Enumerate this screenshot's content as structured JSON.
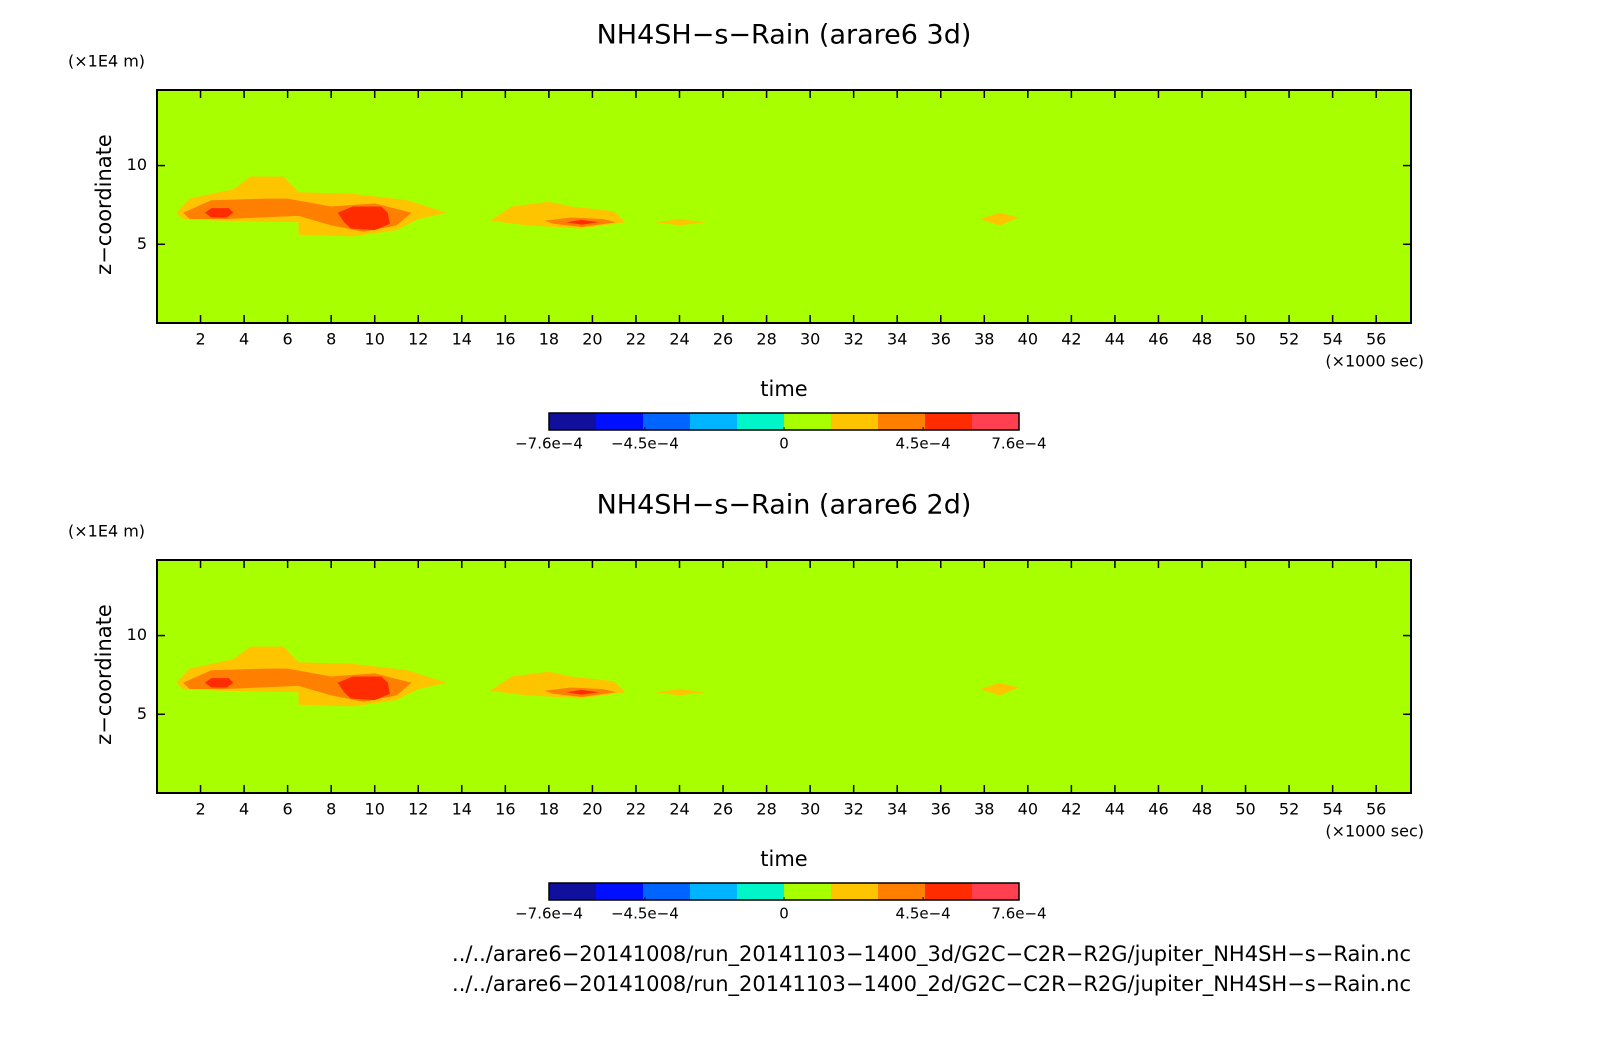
{
  "chart_data": [
    {
      "type": "contour",
      "title": "NH4SH−s−Rain (arare6 3d)",
      "x_label": "time",
      "y_label": "z−coordinate",
      "x_unit": "(×1000 sec)",
      "y_unit": "(×1E4 m)",
      "xlim": [
        0,
        57.6
      ],
      "xticks": [
        2,
        4,
        6,
        8,
        10,
        12,
        14,
        16,
        18,
        20,
        22,
        24,
        26,
        28,
        30,
        32,
        34,
        36,
        38,
        40,
        42,
        44,
        46,
        48,
        50,
        52,
        54,
        56
      ],
      "ylim": [
        0,
        14.8
      ],
      "yticks": [
        5,
        10
      ],
      "colorbar": {
        "lim": [
          -0.00076,
          0.00076
        ],
        "ticks": [
          {
            "value": -0.00076,
            "label": "−7.6e−4"
          },
          {
            "value": -0.00045,
            "label": "−4.5e−4"
          },
          0,
          {
            "value": 0.00045,
            "label": "4.5e−4"
          },
          {
            "value": 0.00076,
            "label": "7.6e−4"
          }
        ],
        "colors": [
          "#10109c",
          "#0010ff",
          "#0064ff",
          "#00b4ff",
          "#00f5c8",
          "#a8ff00",
          "#ffc400",
          "#ff8000",
          "#ff2c00",
          "#ff4050"
        ]
      },
      "background_level": 5,
      "contours": [
        {
          "level": 6,
          "x": [
            0.9,
            1.5,
            3.5,
            4.3,
            5.8,
            6.5,
            9,
            11.5,
            13.3,
            12,
            11,
            9,
            6.5,
            6.5,
            3,
            1.2
          ],
          "y": [
            7.0,
            7.9,
            8.5,
            9.3,
            9.3,
            8.3,
            8.2,
            7.8,
            7.0,
            6.6,
            5.9,
            5.5,
            5.6,
            6.4,
            6.5,
            6.6
          ]
        },
        {
          "level": 7,
          "x": [
            1.2,
            2.5,
            5,
            6,
            8,
            10,
            11.7,
            11,
            9.5,
            8,
            6.5,
            3,
            1.5
          ],
          "y": [
            7.0,
            7.8,
            7.9,
            7.9,
            7.4,
            7.6,
            7.0,
            6.2,
            5.8,
            6.2,
            6.8,
            6.6,
            6.6
          ]
        },
        {
          "level": 8,
          "x": [
            2.2,
            2.5,
            3.3,
            3.5,
            3.2,
            2.5
          ],
          "y": [
            7.0,
            7.3,
            7.3,
            7.0,
            6.7,
            6.7
          ]
        },
        {
          "level": 8,
          "x": [
            8.3,
            9,
            10.3,
            10.6,
            10.7,
            10,
            8.9,
            8.6
          ],
          "y": [
            7.0,
            7.4,
            7.4,
            7.0,
            6.3,
            5.9,
            6.0,
            6.4
          ]
        },
        {
          "level": 6,
          "x": [
            15.3,
            16.3,
            18,
            19,
            21,
            21.5,
            19.5,
            17
          ],
          "y": [
            6.5,
            7.4,
            7.7,
            7.4,
            7.1,
            6.4,
            6.0,
            6.2
          ]
        },
        {
          "level": 7,
          "x": [
            17.8,
            19,
            20.5,
            21.1,
            19.5,
            18.2
          ],
          "y": [
            6.5,
            6.7,
            6.6,
            6.4,
            6.1,
            6.3
          ]
        },
        {
          "level": 8,
          "x": [
            18.8,
            19.5,
            20.3,
            19.5
          ],
          "y": [
            6.4,
            6.55,
            6.4,
            6.25
          ]
        },
        {
          "level": 6,
          "x": [
            22.9,
            24,
            25.2,
            24
          ],
          "y": [
            6.4,
            6.6,
            6.4,
            6.2
          ]
        },
        {
          "level": 6,
          "x": [
            37.8,
            38.7,
            39.6,
            38.7
          ],
          "y": [
            6.6,
            7.0,
            6.7,
            6.2
          ]
        }
      ]
    },
    {
      "type": "contour",
      "title": "NH4SH−s−Rain (arare6 2d)",
      "x_label": "time",
      "y_label": "z−coordinate",
      "x_unit": "(×1000 sec)",
      "y_unit": "(×1E4 m)",
      "xlim": [
        0,
        57.6
      ],
      "xticks": [
        2,
        4,
        6,
        8,
        10,
        12,
        14,
        16,
        18,
        20,
        22,
        24,
        26,
        28,
        30,
        32,
        34,
        36,
        38,
        40,
        42,
        44,
        46,
        48,
        50,
        52,
        54,
        56
      ],
      "ylim": [
        0,
        14.8
      ],
      "yticks": [
        5,
        10
      ],
      "colorbar": {
        "lim": [
          -0.00076,
          0.00076
        ],
        "ticks": [
          {
            "value": -0.00076,
            "label": "−7.6e−4"
          },
          {
            "value": -0.00045,
            "label": "−4.5e−4"
          },
          0,
          {
            "value": 0.00045,
            "label": "4.5e−4"
          },
          {
            "value": 0.00076,
            "label": "7.6e−4"
          }
        ],
        "colors": [
          "#10109c",
          "#0010ff",
          "#0064ff",
          "#00b4ff",
          "#00f5c8",
          "#a8ff00",
          "#ffc400",
          "#ff8000",
          "#ff2c00",
          "#ff4050"
        ]
      },
      "background_level": 5,
      "contours": [
        {
          "level": 6,
          "x": [
            0.9,
            1.5,
            3.5,
            4.3,
            5.8,
            6.5,
            9,
            11.5,
            13.3,
            12,
            11,
            9,
            6.5,
            6.5,
            3,
            1.2
          ],
          "y": [
            7.0,
            7.9,
            8.5,
            9.3,
            9.3,
            8.3,
            8.2,
            7.8,
            7.0,
            6.6,
            5.9,
            5.5,
            5.6,
            6.4,
            6.5,
            6.6
          ]
        },
        {
          "level": 7,
          "x": [
            1.2,
            2.5,
            5,
            6,
            8,
            10,
            11.7,
            11,
            9.5,
            8,
            6.5,
            3,
            1.5
          ],
          "y": [
            7.0,
            7.8,
            7.9,
            7.9,
            7.4,
            7.6,
            7.0,
            6.2,
            5.8,
            6.2,
            6.8,
            6.6,
            6.6
          ]
        },
        {
          "level": 8,
          "x": [
            2.2,
            2.5,
            3.3,
            3.5,
            3.2,
            2.5
          ],
          "y": [
            7.0,
            7.3,
            7.3,
            7.0,
            6.7,
            6.7
          ]
        },
        {
          "level": 8,
          "x": [
            8.3,
            9,
            10.3,
            10.6,
            10.7,
            10,
            8.9,
            8.6
          ],
          "y": [
            7.0,
            7.4,
            7.4,
            7.0,
            6.3,
            5.9,
            6.0,
            6.4
          ]
        },
        {
          "level": 6,
          "x": [
            15.3,
            16.3,
            18,
            19,
            21,
            21.5,
            19.5,
            17
          ],
          "y": [
            6.5,
            7.4,
            7.7,
            7.4,
            7.1,
            6.4,
            6.0,
            6.2
          ]
        },
        {
          "level": 7,
          "x": [
            17.8,
            19,
            20.5,
            21.1,
            19.5,
            18.2
          ],
          "y": [
            6.5,
            6.7,
            6.6,
            6.4,
            6.1,
            6.3
          ]
        },
        {
          "level": 8,
          "x": [
            18.8,
            19.5,
            20.3,
            19.5
          ],
          "y": [
            6.4,
            6.55,
            6.4,
            6.25
          ]
        },
        {
          "level": 6,
          "x": [
            22.9,
            24,
            25.2,
            24
          ],
          "y": [
            6.4,
            6.6,
            6.4,
            6.2
          ]
        },
        {
          "level": 6,
          "x": [
            37.8,
            38.7,
            39.6,
            38.7
          ],
          "y": [
            6.6,
            7.0,
            6.7,
            6.2
          ]
        }
      ]
    }
  ],
  "files": [
    "../../arare6−20141008/run_20141103−1400_3d/G2C−C2R−R2G/jupiter_NH4SH−s−Rain.nc",
    "../../arare6−20141008/run_20141103−1400_2d/G2C−C2R−R2G/jupiter_NH4SH−s−Rain.nc"
  ]
}
